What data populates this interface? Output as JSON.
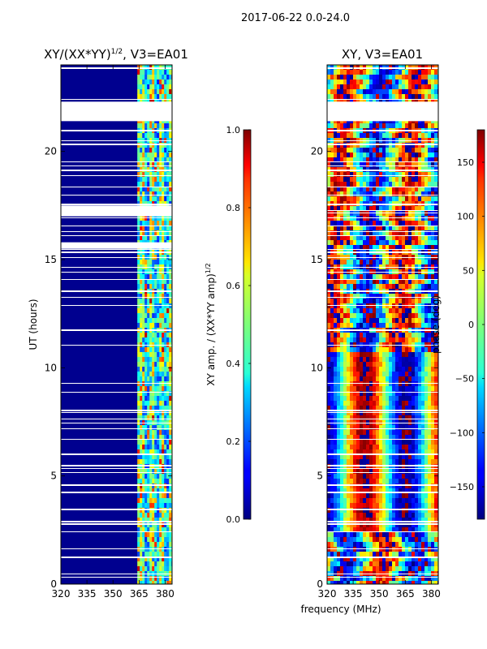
{
  "figure": {
    "suptitle": "2017-06-22 0.0-24.0",
    "xlabel": "frequency (MHz)"
  },
  "chart_data": [
    {
      "type": "heatmap",
      "title": "XY/(XX*YY)",
      "title_sup": "1/2",
      "title_suffix": ", V3=EA01",
      "ylabel": "UT (hours)",
      "xlim": [
        320,
        384
      ],
      "ylim": [
        0,
        24
      ],
      "xticks": [
        "320",
        "335",
        "350",
        "365",
        "380"
      ],
      "yticks": [
        "0",
        "5",
        "10",
        "15",
        "20"
      ],
      "colorbar": {
        "label": "XY amp. / (XX*YY amp)",
        "label_sup": "1/2",
        "range": [
          0.0,
          1.0
        ],
        "ticks": [
          "0.0",
          "0.2",
          "0.4",
          "0.6",
          "0.8",
          "1.0"
        ],
        "colormap": "jet"
      },
      "bright_band_mhz": [
        364,
        384
      ],
      "missing_data_ut_hours": [
        [
          21.4,
          22.3
        ],
        [
          17.0,
          17.5
        ],
        [
          15.5,
          15.8
        ]
      ]
    },
    {
      "type": "heatmap",
      "title": "XY, V3=EA01",
      "ylabel": "",
      "xlim": [
        320,
        384
      ],
      "ylim": [
        0,
        24
      ],
      "xticks": [
        "320",
        "335",
        "350",
        "365",
        "380"
      ],
      "yticks": [
        "0",
        "5",
        "10",
        "15",
        "20"
      ],
      "colorbar": {
        "label": "phase (deg)",
        "range": [
          -180,
          180
        ],
        "ticks": [
          "−150",
          "−100",
          "−50",
          "0",
          "50",
          "100",
          "150"
        ],
        "tick_values": [
          -150,
          -100,
          -50,
          0,
          50,
          100,
          150
        ],
        "colormap": "jet"
      },
      "missing_data_ut_hours": [
        [
          21.4,
          22.3
        ]
      ]
    }
  ]
}
